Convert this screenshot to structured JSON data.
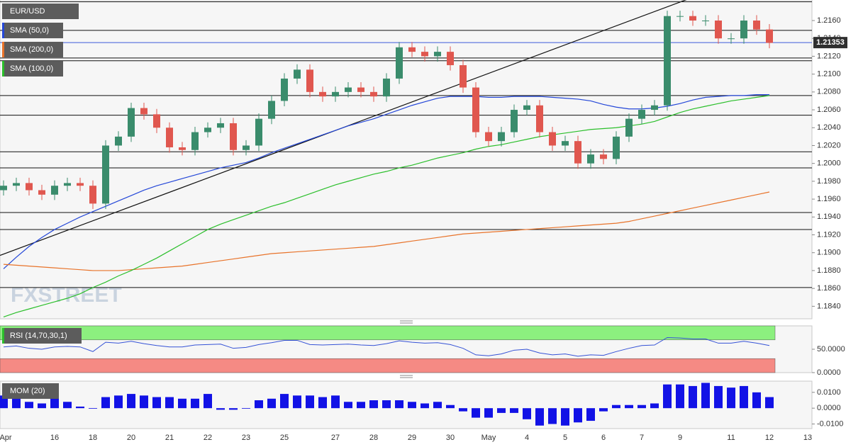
{
  "chart_data": [
    {
      "type": "candlestick",
      "symbol": "EUR/USD",
      "watermark": "FXSTREET",
      "last_price": 1.21353,
      "categories": [
        "Apr",
        null,
        null,
        null,
        "16",
        null,
        null,
        "18",
        null,
        null,
        "20",
        null,
        null,
        "21",
        null,
        null,
        "22",
        null,
        null,
        "23",
        null,
        null,
        "25",
        null,
        null,
        null,
        "27",
        null,
        null,
        "28",
        null,
        null,
        "29",
        null,
        null,
        "30",
        null,
        null,
        "May",
        null,
        null,
        "4",
        null,
        null,
        "5",
        null,
        null,
        "6",
        null,
        null,
        "7",
        null,
        null,
        "9",
        null,
        null,
        null,
        "11",
        null,
        null,
        "12",
        null,
        null,
        "13"
      ],
      "open": [
        1.197,
        1.1975,
        1.1978,
        1.197,
        1.1965,
        1.1975,
        1.1978,
        1.1975,
        1.1955,
        1.202,
        1.203,
        1.2062,
        1.2055,
        1.204,
        1.2018,
        1.2015,
        1.2035,
        1.204,
        1.2045,
        1.2015,
        1.202,
        1.205,
        1.207,
        1.2095,
        1.2105,
        1.208,
        1.2075,
        1.208,
        1.2085,
        1.208,
        1.2075,
        1.2095,
        1.213,
        1.2125,
        1.212,
        1.2125,
        1.211,
        1.2085,
        1.2035,
        1.2025,
        1.2035,
        1.206,
        1.2065,
        1.2035,
        1.202,
        1.2025,
        1.2,
        1.201,
        1.2005,
        1.203,
        1.205,
        1.206,
        1.2065,
        1.2165,
        1.2165,
        1.216,
        1.216,
        1.214,
        1.214,
        1.216,
        1.215,
        null,
        null,
        null
      ],
      "high": [
        1.1981,
        1.1984,
        1.1984,
        1.1976,
        1.1981,
        1.1984,
        1.1984,
        1.1981,
        1.2026,
        1.2036,
        1.2068,
        1.2068,
        1.2061,
        1.2046,
        1.2024,
        1.2041,
        1.2046,
        1.2051,
        1.2051,
        1.2026,
        1.2056,
        1.2076,
        1.2101,
        1.2111,
        1.2111,
        1.2086,
        1.2086,
        1.2091,
        1.2091,
        1.2086,
        1.2101,
        1.2136,
        1.2136,
        1.2131,
        1.2131,
        1.2131,
        1.2116,
        1.2091,
        1.2041,
        1.2041,
        1.2066,
        1.2071,
        1.2071,
        1.2041,
        1.2031,
        1.2031,
        1.2016,
        1.2016,
        1.2036,
        1.2056,
        1.2066,
        1.2071,
        1.2171,
        1.2171,
        1.2171,
        1.2166,
        1.2166,
        1.2146,
        1.2166,
        1.2166,
        1.2156,
        null,
        null,
        null
      ],
      "low": [
        1.1964,
        1.1969,
        1.1964,
        1.1959,
        1.1959,
        1.1969,
        1.1969,
        1.1949,
        1.1949,
        1.2014,
        1.2024,
        1.2049,
        1.2034,
        1.2012,
        1.2009,
        1.2009,
        1.2029,
        1.2034,
        1.2009,
        1.2009,
        1.2014,
        1.2044,
        1.2064,
        1.2089,
        1.2074,
        1.2069,
        1.2069,
        1.2074,
        1.2074,
        1.2069,
        1.2069,
        1.2089,
        1.2119,
        1.2114,
        1.2114,
        1.2104,
        1.2079,
        1.2029,
        1.2019,
        1.2019,
        1.2029,
        1.2054,
        1.2029,
        1.2014,
        1.2014,
        1.1994,
        1.1994,
        1.1999,
        1.1999,
        1.2024,
        1.2044,
        1.2054,
        1.2059,
        1.2159,
        1.2154,
        1.2154,
        1.2134,
        1.2134,
        1.2134,
        1.2144,
        1.2129,
        null,
        null,
        null
      ],
      "close": [
        1.1975,
        1.1978,
        1.197,
        1.1965,
        1.1975,
        1.1978,
        1.1975,
        1.1955,
        1.202,
        1.203,
        1.2062,
        1.2055,
        1.204,
        1.2018,
        1.2015,
        1.2035,
        1.204,
        1.2045,
        1.2015,
        1.202,
        1.205,
        1.207,
        1.2095,
        1.2105,
        1.208,
        1.2075,
        1.208,
        1.2085,
        1.208,
        1.2075,
        1.2095,
        1.213,
        1.2125,
        1.212,
        1.2125,
        1.211,
        1.2085,
        1.2035,
        1.2025,
        1.2035,
        1.206,
        1.2065,
        1.2035,
        1.202,
        1.2025,
        1.2,
        1.201,
        1.2005,
        1.203,
        1.205,
        1.206,
        1.2065,
        1.2165,
        1.2165,
        1.216,
        1.216,
        1.214,
        1.214,
        1.216,
        1.215,
        1.2135,
        null,
        null,
        null
      ],
      "up_color": "#3a8c6c",
      "down_color": "#e0574f",
      "series": [
        {
          "name": "SMA (50,0)",
          "color": "#2447d8",
          "values": [
            1.1882,
            1.1895,
            1.1907,
            1.1917,
            1.1926,
            1.1933,
            1.194,
            1.1946,
            1.1952,
            1.1958,
            1.1964,
            1.197,
            1.1975,
            1.1979,
            1.1983,
            1.1987,
            1.1991,
            1.1995,
            1.1998,
            1.2001,
            1.2006,
            1.2012,
            1.2017,
            1.2022,
            1.2027,
            1.2032,
            1.2037,
            1.2042,
            1.2046,
            1.205,
            1.2055,
            1.206,
            1.2065,
            1.2069,
            1.2073,
            1.2075,
            1.2075,
            1.2075,
            1.2074,
            1.2074,
            1.2075,
            1.2075,
            1.2075,
            1.2074,
            1.2073,
            1.2072,
            1.207,
            1.2066,
            1.2063,
            1.2061,
            1.2061,
            1.2062,
            1.2064,
            1.2067,
            1.2071,
            1.2074,
            1.2075,
            1.2076,
            1.2076,
            1.2077,
            1.2077,
            null,
            null,
            null
          ]
        },
        {
          "name": "SMA (200,0)",
          "color": "#e8732a",
          "values": [
            1.1887,
            1.1886,
            1.1885,
            1.1884,
            1.1883,
            1.1882,
            1.1881,
            1.188,
            1.188,
            1.188,
            1.1881,
            1.1882,
            1.1883,
            1.1884,
            1.1885,
            1.1887,
            1.1889,
            1.1891,
            1.1893,
            1.1895,
            1.1897,
            1.1899,
            1.19,
            1.1901,
            1.1902,
            1.1903,
            1.1904,
            1.1905,
            1.1906,
            1.1907,
            1.1909,
            1.1911,
            1.1913,
            1.1915,
            1.1917,
            1.1919,
            1.1921,
            1.1922,
            1.1923,
            1.1924,
            1.1925,
            1.1926,
            1.1927,
            1.1928,
            1.1929,
            1.193,
            1.1931,
            1.1932,
            1.1933,
            1.1935,
            1.1938,
            1.1941,
            1.1944,
            1.1947,
            1.195,
            1.1953,
            1.1956,
            1.1959,
            1.1962,
            1.1965,
            1.1968,
            null,
            null,
            null
          ]
        },
        {
          "name": "SMA (100,0)",
          "color": "#2bbf2b",
          "values": [
            1.1828,
            1.1833,
            1.1837,
            1.1841,
            1.1845,
            1.1849,
            1.1854,
            1.1861,
            1.1867,
            1.1874,
            1.188,
            1.1887,
            1.1894,
            1.1902,
            1.191,
            1.1918,
            1.1926,
            1.1932,
            1.1937,
            1.1942,
            1.1947,
            1.1952,
            1.1956,
            1.1961,
            1.1966,
            1.1971,
            1.1976,
            1.198,
            1.1984,
            1.1988,
            1.1991,
            1.1995,
            1.1998,
            1.2002,
            1.2006,
            1.2009,
            1.2012,
            1.2016,
            1.2019,
            1.2021,
            1.2024,
            1.2027,
            1.203,
            1.2032,
            1.2034,
            1.2036,
            1.2038,
            1.2039,
            1.204,
            1.2042,
            1.2044,
            1.2047,
            1.2052,
            1.2057,
            1.2061,
            1.2064,
            1.2067,
            1.207,
            1.2072,
            1.2074,
            1.2076,
            null,
            null,
            null
          ]
        }
      ],
      "hlines": [
        1.2181,
        1.2149,
        1.2118,
        1.2115,
        1.2076,
        1.2054,
        1.2013,
        1.1995,
        1.1945,
        1.1926,
        1.1861
      ],
      "trendline": {
        "x": [
          0,
          54
        ],
        "values": [
          1.1897,
          1.2186
        ]
      },
      "ylim": [
        1.1826,
        1.2183
      ],
      "yticks": [
        {
          "value": 1.184,
          "label": "1.1840"
        },
        {
          "value": 1.186,
          "label": "1.1860"
        },
        {
          "value": 1.188,
          "label": "1.1880"
        },
        {
          "value": 1.19,
          "label": "1.1900"
        },
        {
          "value": 1.192,
          "label": "1.1920"
        },
        {
          "value": 1.194,
          "label": "1.1940"
        },
        {
          "value": 1.196,
          "label": "1.1960"
        },
        {
          "value": 1.198,
          "label": "1.1980"
        },
        {
          "value": 1.2,
          "label": "1.2000"
        },
        {
          "value": 1.202,
          "label": "1.2020"
        },
        {
          "value": 1.204,
          "label": "1.2040"
        },
        {
          "value": 1.206,
          "label": "1.2060"
        },
        {
          "value": 1.208,
          "label": "1.2080"
        },
        {
          "value": 1.21,
          "label": "1.2100"
        },
        {
          "value": 1.212,
          "label": "1.2120"
        },
        {
          "value": 1.214,
          "label": "1.2140"
        },
        {
          "value": 1.216,
          "label": "1.2160"
        }
      ]
    },
    {
      "type": "line",
      "name": "RSI (14,70,30,1)",
      "color": "#3552d6",
      "overbought": 70,
      "oversold": 30,
      "values": [
        55,
        57,
        52,
        50,
        55,
        56,
        55,
        45,
        65,
        63,
        67,
        62,
        58,
        55,
        55,
        59,
        60,
        61,
        52,
        54,
        60,
        64,
        69,
        69,
        60,
        59,
        60,
        61,
        59,
        58,
        62,
        68,
        65,
        63,
        64,
        60,
        52,
        38,
        36,
        40,
        48,
        50,
        42,
        38,
        40,
        35,
        38,
        37,
        45,
        52,
        58,
        59,
        75,
        74,
        72,
        72,
        63,
        63,
        67,
        63,
        58,
        null,
        null,
        null
      ],
      "ylim": [
        0,
        100
      ],
      "yticks": [
        {
          "value": 50,
          "label": "50.0000"
        },
        {
          "value": 0,
          "label": "0.0000"
        }
      ]
    },
    {
      "type": "bar",
      "name": "MOM (20)",
      "color": "#1212e6",
      "values": [
        0.008,
        0.008,
        0.004,
        0.003,
        0.007,
        0.004,
        0.001,
        0.0,
        0.007,
        0.008,
        0.009,
        0.008,
        0.007,
        0.007,
        0.006,
        0.006,
        0.009,
        -0.001,
        -0.001,
        0.0,
        0.005,
        0.006,
        0.009,
        0.008,
        0.008,
        0.007,
        0.008,
        0.004,
        0.004,
        0.005,
        0.005,
        0.005,
        0.004,
        0.003,
        0.004,
        0.002,
        -0.002,
        -0.006,
        -0.006,
        -0.003,
        -0.003,
        -0.007,
        -0.011,
        -0.01,
        -0.011,
        -0.009,
        -0.008,
        -0.002,
        0.002,
        0.002,
        0.002,
        0.003,
        0.015,
        0.015,
        0.014,
        0.016,
        0.014,
        0.013,
        0.014,
        0.01,
        0.007,
        null,
        null,
        null
      ],
      "ylim": [
        -0.0129,
        0.0171
      ],
      "yticks": [
        {
          "value": 0.01,
          "label": "0.0100"
        },
        {
          "value": 0,
          "label": "0.0000"
        },
        {
          "value": -0.01,
          "label": "-0.0100"
        }
      ]
    }
  ]
}
